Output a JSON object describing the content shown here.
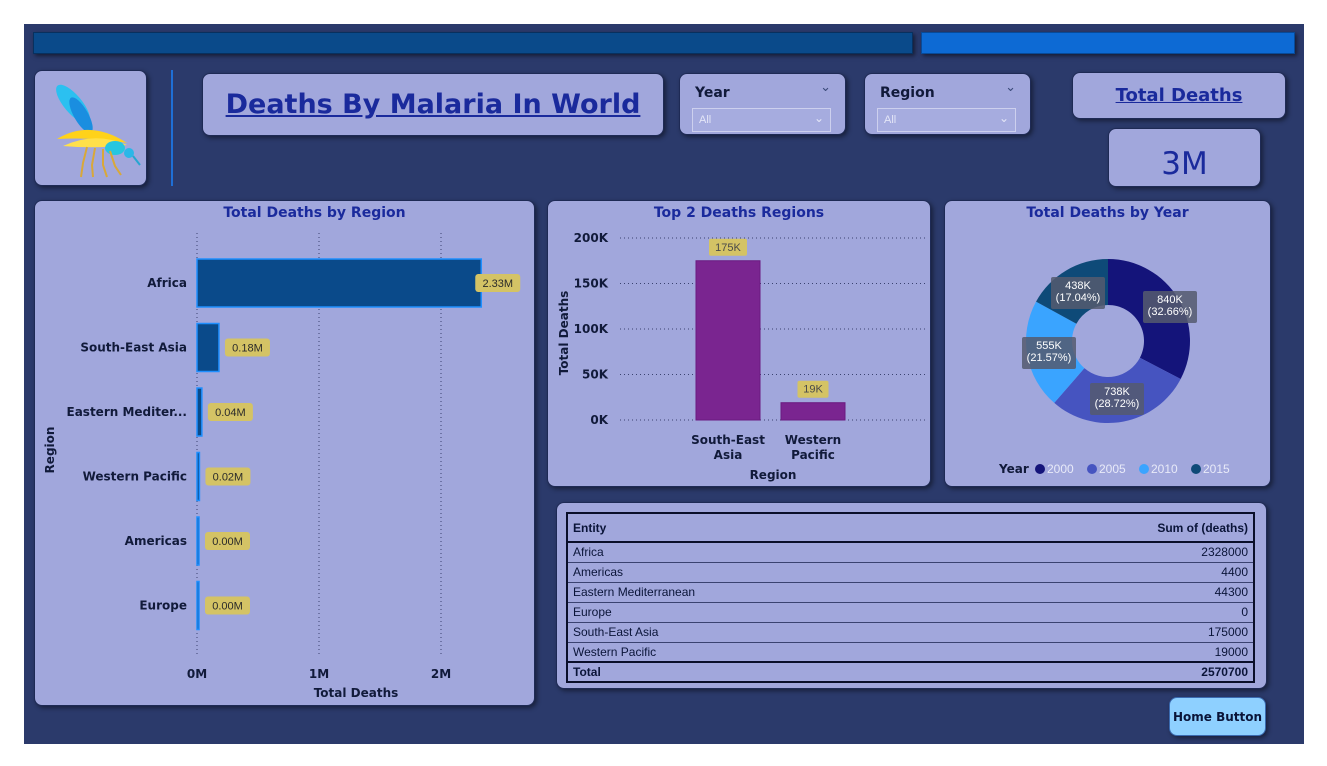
{
  "title": "Deaths By Malaria In World",
  "slicers": [
    {
      "label": "Year",
      "value": "All"
    },
    {
      "label": "Region",
      "value": "All"
    }
  ],
  "kpi": {
    "title": "Total Deaths",
    "value": "3M"
  },
  "home_button": "Home Button",
  "colors": {
    "background": "#2b3a6b",
    "card": "#a1a7dc",
    "accent": "#1a2a9c",
    "bar_region": "#0a4a8a",
    "bar_top2": "#7a2590",
    "data_label": "#d4c365"
  },
  "icons": {
    "logo": "mosquito-icon"
  },
  "chart_data": [
    {
      "type": "bar",
      "orientation": "horizontal",
      "title": "Total Deaths by Region",
      "xlabel": "Total Deaths",
      "ylabel": "Region",
      "categories": [
        "Africa",
        "South-East Asia",
        "Eastern Mediter...",
        "Western Pacific",
        "Americas",
        "Europe"
      ],
      "values": [
        2.33,
        0.18,
        0.04,
        0.02,
        0.0,
        0.0
      ],
      "data_labels": [
        "2.33M",
        "0.18M",
        "0.04M",
        "0.02M",
        "0.00M",
        "0.00M"
      ],
      "xticks": [
        "0M",
        "1M",
        "2M"
      ],
      "xlim": [
        0,
        2.6
      ],
      "unit": "M"
    },
    {
      "type": "bar",
      "title": "Top 2 Deaths Regions",
      "xlabel": "Region",
      "ylabel": "Total Deaths",
      "categories": [
        "South-East Asia",
        "Western Pacific"
      ],
      "values": [
        175000,
        19000
      ],
      "data_labels": [
        "175K",
        "19K"
      ],
      "yticks": [
        "0K",
        "50K",
        "100K",
        "150K",
        "200K"
      ],
      "ylim": [
        0,
        200000
      ]
    },
    {
      "type": "pie",
      "subtype": "donut",
      "title": "Total Deaths by Year",
      "legend_title": "Year",
      "legend_position": "bottom",
      "categories": [
        "2000",
        "2005",
        "2010",
        "2015"
      ],
      "values": [
        840000,
        738000,
        555000,
        438000
      ],
      "data_labels": [
        "840K\n(32.66%)",
        "738K\n(28.72%)",
        "555K\n(21.57%)",
        "438K\n(17.04%)"
      ],
      "colors": [
        "#14147a",
        "#4654c0",
        "#3aa4ff",
        "#0e4a78"
      ]
    },
    {
      "type": "table",
      "columns": [
        "Entity",
        "Sum of (deaths)"
      ],
      "rows": [
        [
          "Africa",
          "2328000"
        ],
        [
          "Americas",
          "4400"
        ],
        [
          "Eastern Mediterranean",
          "44300"
        ],
        [
          "Europe",
          "0"
        ],
        [
          "South-East Asia",
          "175000"
        ],
        [
          "Western Pacific",
          "19000"
        ]
      ],
      "total": [
        "Total",
        "2570700"
      ]
    }
  ]
}
